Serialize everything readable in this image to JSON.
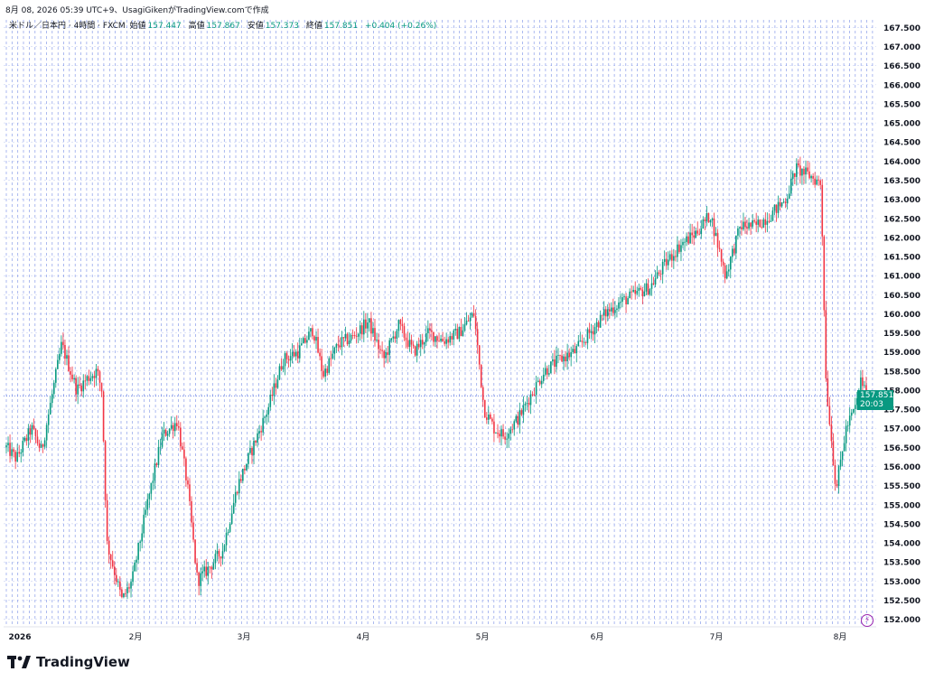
{
  "caption": "8月 08, 2026 05:39 UTC+9、UsagiGikenがTradingView.comで作成",
  "legend": {
    "symbol": "米ドル／日本円 · 4時間 · FXCM",
    "open_label": "始値",
    "open": "157.447",
    "high_label": "高値",
    "high": "157.867",
    "low_label": "安値",
    "low": "157.373",
    "close_label": "終値",
    "close": "157.851",
    "change": "+0.404 (+0.26%)"
  },
  "price_badge": {
    "price": "157.851",
    "countdown": "20:03"
  },
  "footer": {
    "brand": "TradingView"
  },
  "colors": {
    "up": "#089981",
    "down": "#f23645",
    "grid": "#3b5bdb",
    "badge": "#089981",
    "text": "#131722"
  },
  "chart_data": {
    "type": "candlestick",
    "ylim": [
      151.8,
      167.7
    ],
    "y_ticks": [
      "167.500",
      "167.000",
      "166.500",
      "166.000",
      "165.500",
      "165.000",
      "164.500",
      "164.000",
      "163.500",
      "163.000",
      "162.500",
      "162.000",
      "161.500",
      "161.000",
      "160.500",
      "160.000",
      "159.500",
      "159.000",
      "158.500",
      "158.000",
      "157.500",
      "157.000",
      "156.500",
      "156.000",
      "155.500",
      "155.000",
      "154.500",
      "154.000",
      "153.500",
      "153.000",
      "152.500",
      "152.000"
    ],
    "x_labels": [
      "2026",
      "2月",
      "3月",
      "4月",
      "5月",
      "6月",
      "7月",
      "8月"
    ],
    "last_close": 157.851,
    "path": [
      [
        0,
        156.5
      ],
      [
        0.02,
        156.2
      ],
      [
        0.05,
        157.0
      ],
      [
        0.07,
        156.4
      ],
      [
        0.09,
        157.8
      ],
      [
        0.11,
        159.2
      ],
      [
        0.14,
        158.0
      ],
      [
        0.16,
        158.3
      ],
      [
        0.18,
        158.5
      ],
      [
        0.19,
        158.0
      ],
      [
        0.2,
        154.0
      ],
      [
        0.23,
        152.5
      ],
      [
        0.25,
        153.0
      ],
      [
        0.28,
        155.0
      ],
      [
        0.31,
        156.8
      ],
      [
        0.34,
        157.2
      ],
      [
        0.36,
        155.5
      ],
      [
        0.38,
        153.0
      ],
      [
        0.4,
        153.3
      ],
      [
        0.43,
        153.8
      ],
      [
        0.46,
        155.5
      ],
      [
        0.49,
        156.5
      ],
      [
        0.52,
        157.5
      ],
      [
        0.55,
        158.8
      ],
      [
        0.58,
        159.0
      ],
      [
        0.61,
        159.6
      ],
      [
        0.63,
        158.4
      ],
      [
        0.66,
        159.2
      ],
      [
        0.69,
        159.4
      ],
      [
        0.72,
        159.8
      ],
      [
        0.75,
        158.8
      ],
      [
        0.78,
        159.7
      ],
      [
        0.81,
        159.0
      ],
      [
        0.84,
        159.5
      ],
      [
        0.87,
        159.3
      ],
      [
        0.9,
        159.5
      ],
      [
        0.93,
        160.0
      ],
      [
        0.95,
        157.5
      ],
      [
        0.97,
        157.0
      ],
      [
        0.99,
        156.8
      ],
      [
        1.02,
        157.3
      ],
      [
        1.04,
        157.8
      ],
      [
        1.07,
        158.5
      ],
      [
        1.1,
        158.8
      ],
      [
        1.13,
        159.0
      ],
      [
        1.16,
        159.5
      ],
      [
        1.19,
        160.0
      ],
      [
        1.22,
        160.3
      ],
      [
        1.25,
        160.5
      ],
      [
        1.28,
        160.7
      ],
      [
        1.31,
        161.3
      ],
      [
        1.34,
        161.8
      ],
      [
        1.37,
        162.1
      ],
      [
        1.4,
        162.6
      ],
      [
        1.43,
        161.0
      ],
      [
        1.46,
        162.3
      ],
      [
        1.49,
        162.3
      ],
      [
        1.52,
        162.6
      ],
      [
        1.55,
        163.0
      ],
      [
        1.57,
        163.8
      ],
      [
        1.6,
        163.6
      ],
      [
        1.62,
        163.4
      ],
      [
        1.63,
        158.2
      ],
      [
        1.65,
        155.4
      ],
      [
        1.67,
        157.0
      ],
      [
        1.69,
        157.6
      ],
      [
        1.7,
        158.3
      ],
      [
        1.71,
        157.851
      ]
    ]
  }
}
